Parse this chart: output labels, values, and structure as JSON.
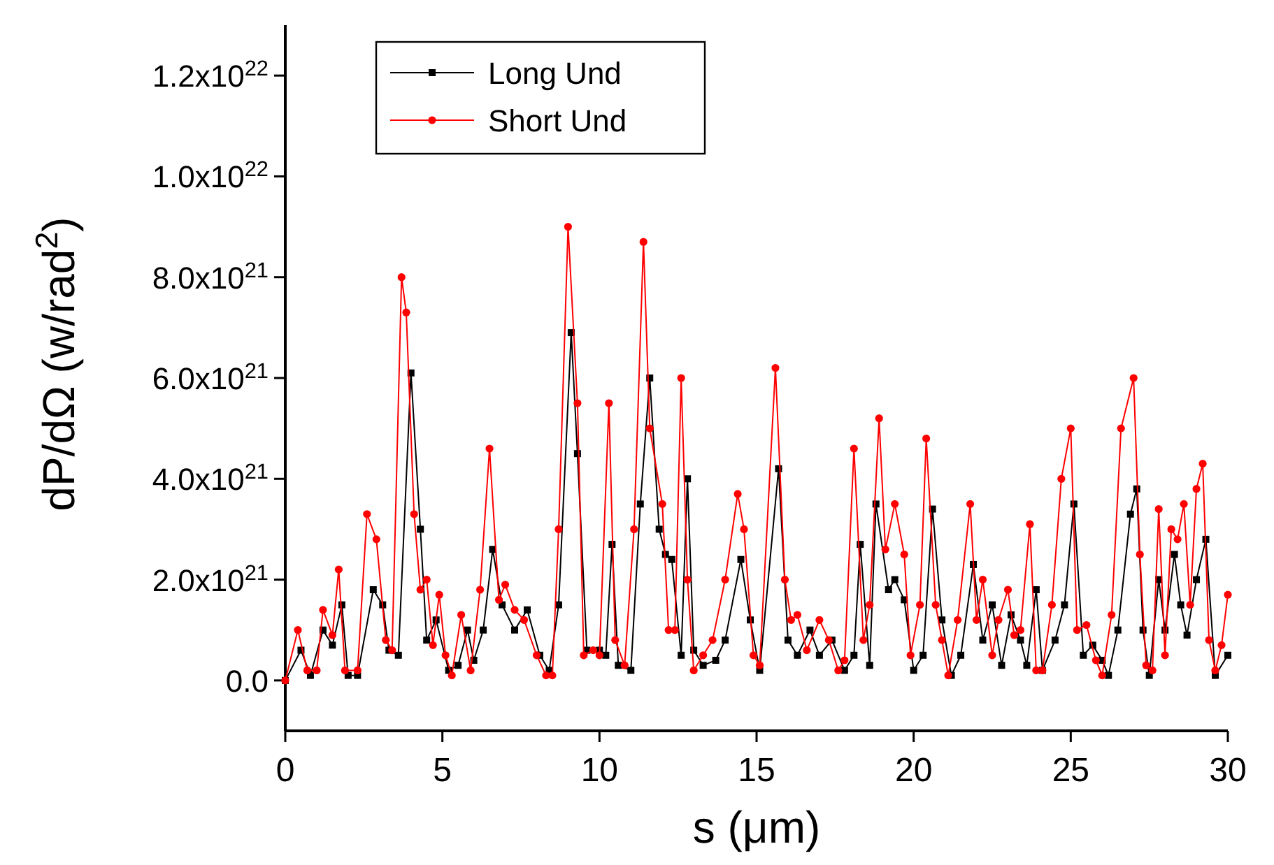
{
  "chart_data": {
    "type": "line",
    "xlabel": "s (μm)",
    "ylabel": "dP/dΩ (w/rad$^{2}$)",
    "xlim": [
      0,
      30
    ],
    "xticks": [
      0,
      5,
      10,
      15,
      20,
      25,
      30
    ],
    "ylim": [
      -1e+21,
      1.3e+22
    ],
    "yticks": [
      {
        "value": 0,
        "label": "0.0"
      },
      {
        "value": 2e+21,
        "label": "2.0x10$^{21}$"
      },
      {
        "value": 4e+21,
        "label": "4.0x10$^{21}$"
      },
      {
        "value": 6e+21,
        "label": "6.0x10$^{21}$"
      },
      {
        "value": 8e+21,
        "label": "8.0x10$^{21}$"
      },
      {
        "value": 1e+22,
        "label": "1.0x10$^{22}$"
      },
      {
        "value": 1.2e+22,
        "label": "1.2x10$^{22}$"
      }
    ],
    "grid": false,
    "legend": "top left",
    "line_style": "solid",
    "series": [
      {
        "name": "Long Und",
        "color": "#000000",
        "marker": "square",
        "x": [
          0,
          0.5,
          0.8,
          1.2,
          1.5,
          1.8,
          2.0,
          2.3,
          2.8,
          3.1,
          3.3,
          3.6,
          4.0,
          4.3,
          4.5,
          4.8,
          5.2,
          5.5,
          5.8,
          6.0,
          6.3,
          6.6,
          6.9,
          7.3,
          7.7,
          8.1,
          8.4,
          8.7,
          9.1,
          9.3,
          9.6,
          10.0,
          10.2,
          10.4,
          10.6,
          11.0,
          11.3,
          11.6,
          11.9,
          12.1,
          12.3,
          12.6,
          12.8,
          13.0,
          13.3,
          13.7,
          14.0,
          14.5,
          14.8,
          15.1,
          15.7,
          16.0,
          16.3,
          16.7,
          17.0,
          17.4,
          17.8,
          18.1,
          18.3,
          18.6,
          18.8,
          19.2,
          19.4,
          19.7,
          20.0,
          20.3,
          20.6,
          20.9,
          21.2,
          21.5,
          21.9,
          22.2,
          22.5,
          22.8,
          23.1,
          23.4,
          23.6,
          23.9,
          24.1,
          24.5,
          24.8,
          25.1,
          25.4,
          25.7,
          26.0,
          26.2,
          26.5,
          26.9,
          27.1,
          27.3,
          27.5,
          27.8,
          28.0,
          28.3,
          28.5,
          28.7,
          29.0,
          29.3,
          29.6,
          30.0
        ],
        "values": [
          0,
          6e+20,
          1e+20,
          1e+21,
          7e+20,
          1.5e+21,
          1e+20,
          1e+20,
          1.8e+21,
          1.5e+21,
          6e+20,
          5e+20,
          6.1e+21,
          3e+21,
          8e+20,
          1.2e+21,
          2e+20,
          3e+20,
          1e+21,
          4e+20,
          1e+21,
          2.6e+21,
          1.5e+21,
          1e+21,
          1.4e+21,
          5e+20,
          2e+20,
          1.5e+21,
          6.9e+21,
          4.5e+21,
          6e+20,
          6e+20,
          5e+20,
          2.7e+21,
          3e+20,
          2e+20,
          3.5e+21,
          6e+21,
          3e+21,
          2.5e+21,
          2.4e+21,
          5e+20,
          4e+21,
          6e+20,
          3e+20,
          4e+20,
          8e+20,
          2.4e+21,
          1.2e+21,
          2e+20,
          4.2e+21,
          8e+20,
          5e+20,
          1e+21,
          5e+20,
          8e+20,
          2e+20,
          5e+20,
          2.7e+21,
          3e+20,
          3.5e+21,
          1.8e+21,
          2e+21,
          1.6e+21,
          2e+20,
          5e+20,
          3.4e+21,
          1.2e+21,
          1e+20,
          5e+20,
          2.3e+21,
          8e+20,
          1.5e+21,
          3e+20,
          1.3e+21,
          8e+20,
          3e+20,
          1.8e+21,
          2e+20,
          8e+20,
          1.5e+21,
          3.5e+21,
          5e+20,
          7e+20,
          4e+20,
          1e+20,
          1e+21,
          3.3e+21,
          3.8e+21,
          1e+21,
          1e+20,
          2e+21,
          1e+21,
          2.5e+21,
          1.5e+21,
          9e+20,
          2e+21,
          2.8e+21,
          1e+20,
          5e+20
        ]
      },
      {
        "name": "Short Und",
        "color": "#ff0000",
        "marker": "circle",
        "x": [
          0,
          0.4,
          0.7,
          1.0,
          1.2,
          1.5,
          1.7,
          1.9,
          2.3,
          2.6,
          2.9,
          3.2,
          3.4,
          3.7,
          3.85,
          4.1,
          4.3,
          4.5,
          4.7,
          4.9,
          5.1,
          5.3,
          5.6,
          5.9,
          6.2,
          6.5,
          6.8,
          7.0,
          7.3,
          7.6,
          8.0,
          8.3,
          8.5,
          8.7,
          9.0,
          9.3,
          9.5,
          9.8,
          10.0,
          10.3,
          10.5,
          10.8,
          11.1,
          11.4,
          11.6,
          12.0,
          12.2,
          12.4,
          12.6,
          12.8,
          13.0,
          13.3,
          13.6,
          14.0,
          14.4,
          14.6,
          14.9,
          15.1,
          15.6,
          15.9,
          16.1,
          16.3,
          16.6,
          17.0,
          17.3,
          17.6,
          17.8,
          18.1,
          18.4,
          18.6,
          18.9,
          19.1,
          19.4,
          19.7,
          19.9,
          20.2,
          20.4,
          20.7,
          20.9,
          21.1,
          21.4,
          21.8,
          22.0,
          22.2,
          22.5,
          22.7,
          23.0,
          23.2,
          23.4,
          23.7,
          23.9,
          24.1,
          24.4,
          24.7,
          25.0,
          25.2,
          25.5,
          25.8,
          26.0,
          26.3,
          26.6,
          27.0,
          27.2,
          27.4,
          27.6,
          27.8,
          28.0,
          28.2,
          28.4,
          28.6,
          28.8,
          29.0,
          29.2,
          29.4,
          29.6,
          29.8,
          30.0
        ],
        "values": [
          0,
          1e+21,
          2e+20,
          2e+20,
          1.4e+21,
          9e+20,
          2.2e+21,
          2e+20,
          2e+20,
          3.3e+21,
          2.8e+21,
          8e+20,
          6e+20,
          8e+21,
          7.3e+21,
          3.3e+21,
          1.8e+21,
          2e+21,
          7e+20,
          1.7e+21,
          5e+20,
          1e+20,
          1.3e+21,
          2e+20,
          1.8e+21,
          4.6e+21,
          1.6e+21,
          1.9e+21,
          1.4e+21,
          1.2e+21,
          5e+20,
          1e+20,
          1e+20,
          3e+21,
          9e+21,
          5.5e+21,
          5e+20,
          6e+20,
          5e+20,
          5.5e+21,
          8e+20,
          3e+20,
          3e+21,
          8.7e+21,
          5e+21,
          3.5e+21,
          1e+21,
          1e+21,
          6e+21,
          2e+21,
          2e+20,
          5e+20,
          8e+20,
          2e+21,
          3.7e+21,
          3e+21,
          5e+20,
          3e+20,
          6.2e+21,
          2e+21,
          1.2e+21,
          1.3e+21,
          6e+20,
          1.2e+21,
          8e+20,
          2e+20,
          4e+20,
          4.6e+21,
          8e+20,
          1.5e+21,
          5.2e+21,
          2.6e+21,
          3.5e+21,
          2.5e+21,
          5e+20,
          1.5e+21,
          4.8e+21,
          1.5e+21,
          8e+20,
          1e+20,
          1.2e+21,
          3.5e+21,
          1.2e+21,
          2e+21,
          5e+20,
          1.2e+21,
          1.8e+21,
          9e+20,
          1e+21,
          3.1e+21,
          2e+20,
          2e+20,
          1.5e+21,
          4e+21,
          5e+21,
          1e+21,
          1.1e+21,
          4e+20,
          1e+20,
          1.3e+21,
          5e+21,
          6e+21,
          2.5e+21,
          3e+20,
          2e+20,
          3.4e+21,
          5e+20,
          3e+21,
          2.8e+21,
          3.5e+21,
          1.5e+21,
          3.8e+21,
          4.3e+21,
          8e+20,
          2e+20,
          7e+20,
          1.7e+21
        ]
      }
    ]
  }
}
